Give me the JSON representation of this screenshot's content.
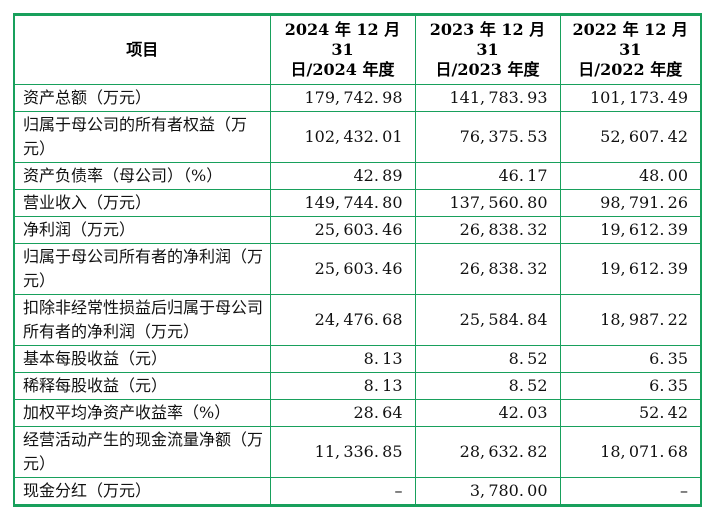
{
  "colors": {
    "table_border_green": "#18a05c",
    "text_black": "#111111"
  },
  "table": {
    "header": {
      "item_label": "项目",
      "periods": [
        {
          "line1": "2024 年 12 月 31",
          "line2": "日/2024 年度"
        },
        {
          "line1": "2023 年 12 月 31",
          "line2": "日/2023 年度"
        },
        {
          "line1": "2022 年 12 月 31",
          "line2": "日/2022 年度"
        }
      ]
    },
    "rows": [
      {
        "label": "资产总额（万元）",
        "values": [
          "179,742.98",
          "141,783.93",
          "101,173.49"
        ]
      },
      {
        "label": "归属于母公司的所有者权益（万元）",
        "values": [
          "102,432.01",
          "76,375.53",
          "52,607.42"
        ]
      },
      {
        "label": "资产负债率（母公司）（%）",
        "values": [
          "42.89",
          "46.17",
          "48.00"
        ]
      },
      {
        "label": "营业收入（万元）",
        "values": [
          "149,744.80",
          "137,560.80",
          "98,791.26"
        ]
      },
      {
        "label": "净利润（万元）",
        "values": [
          "25,603.46",
          "26,838.32",
          "19,612.39"
        ]
      },
      {
        "label": "归属于母公司所有者的净利润（万元）",
        "values": [
          "25,603.46",
          "26,838.32",
          "19,612.39"
        ]
      },
      {
        "label": "扣除非经常性损益后归属于母公司所有者的净利润（万元）",
        "values": [
          "24,476.68",
          "25,584.84",
          "18,987.22"
        ]
      },
      {
        "label": "基本每股收益（元）",
        "values": [
          "8.13",
          "8.52",
          "6.35"
        ]
      },
      {
        "label": "稀释每股收益（元）",
        "values": [
          "8.13",
          "8.52",
          "6.35"
        ]
      },
      {
        "label": "加权平均净资产收益率（%）",
        "values": [
          "28.64",
          "42.03",
          "52.42"
        ]
      },
      {
        "label": "经营活动产生的现金流量净额（万元）",
        "values": [
          "11,336.85",
          "28,632.82",
          "18,071.68"
        ]
      },
      {
        "label": "现金分红（万元）",
        "values": [
          "–",
          "3,780.00",
          "–"
        ]
      }
    ]
  }
}
